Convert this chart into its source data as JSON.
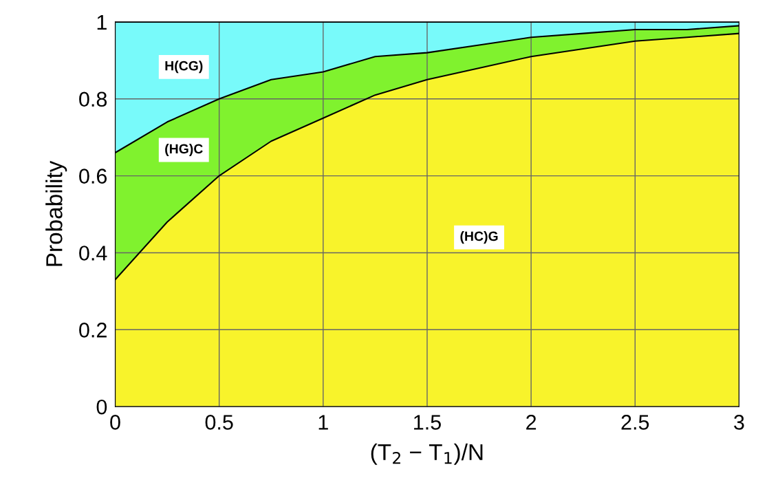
{
  "chart_data": {
    "type": "area",
    "stacked": true,
    "x": [
      0,
      0.25,
      0.5,
      0.75,
      1,
      1.25,
      1.5,
      1.75,
      2,
      2.25,
      2.5,
      2.75,
      3
    ],
    "series": [
      {
        "name": "(HC)G",
        "color": "#f8f32b",
        "values": [
          0.33,
          0.48,
          0.6,
          0.69,
          0.75,
          0.81,
          0.85,
          0.88,
          0.91,
          0.93,
          0.95,
          0.96,
          0.97
        ]
      },
      {
        "name": "(HG)C",
        "color": "#80f22e",
        "values": [
          0.33,
          0.26,
          0.2,
          0.16,
          0.12,
          0.1,
          0.07,
          0.06,
          0.05,
          0.04,
          0.03,
          0.02,
          0.02
        ]
      },
      {
        "name": "H(CG)",
        "color": "#78fafa",
        "values": [
          0.34,
          0.26,
          0.2,
          0.15,
          0.13,
          0.09,
          0.08,
          0.06,
          0.04,
          0.03,
          0.02,
          0.02,
          0.01
        ]
      }
    ],
    "xlabel": "(T$_{2}$ − T$_{1}$)/N",
    "ylabel": "Probability",
    "xlim": [
      0,
      3
    ],
    "ylim": [
      0,
      1
    ],
    "xticks": [
      0,
      0.5,
      1,
      1.5,
      2,
      2.5,
      3
    ],
    "yticks": [
      0,
      0.2,
      0.4,
      0.6,
      0.8,
      1
    ],
    "grid": true
  }
}
